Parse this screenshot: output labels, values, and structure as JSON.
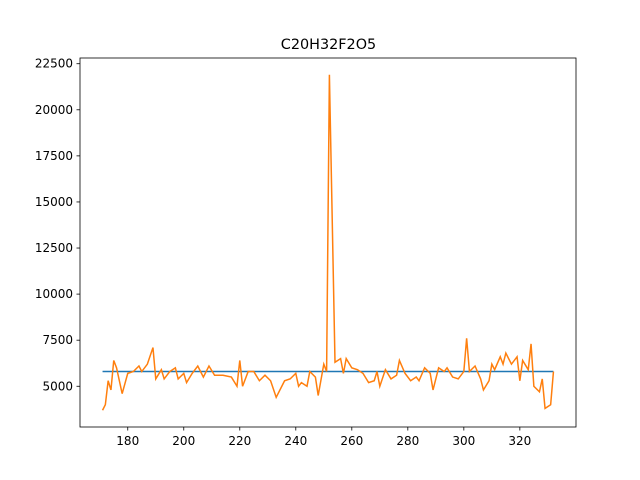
{
  "chart_data": {
    "type": "line",
    "title": "C20H32F2O5",
    "series": [
      {
        "color": "#1f77b4",
        "x": [
          171,
          332
        ],
        "values": [
          5800,
          5800
        ]
      },
      {
        "color": "#ff7f0e",
        "x": [
          171,
          172,
          173,
          174,
          175,
          176,
          178,
          180,
          182,
          184,
          185,
          187,
          189,
          190,
          192,
          193,
          195,
          197,
          198,
          200,
          201,
          203,
          205,
          207,
          209,
          211,
          214,
          217,
          219,
          220,
          221,
          223,
          225,
          227,
          229,
          231,
          233,
          236,
          238,
          240,
          241,
          242,
          244,
          245,
          247,
          248,
          250,
          251,
          252,
          254,
          256,
          257,
          258,
          260,
          262,
          264,
          266,
          268,
          269,
          270,
          272,
          274,
          276,
          277,
          279,
          281,
          283,
          284,
          286,
          288,
          289,
          291,
          293,
          294,
          296,
          298,
          300,
          301,
          302,
          304,
          306,
          307,
          309,
          310,
          311,
          313,
          314,
          315,
          317,
          319,
          320,
          321,
          323,
          324,
          325,
          327,
          328,
          329,
          331,
          332
        ],
        "values": [
          3700,
          4000,
          5300,
          4800,
          6400,
          6000,
          4600,
          5700,
          5800,
          6100,
          5800,
          6200,
          7100,
          5400,
          5900,
          5400,
          5800,
          6000,
          5400,
          5700,
          5200,
          5700,
          6100,
          5500,
          6100,
          5600,
          5600,
          5500,
          5000,
          6400,
          5000,
          5800,
          5800,
          5300,
          5600,
          5300,
          4400,
          5300,
          5400,
          5700,
          5000,
          5200,
          5000,
          5800,
          5500,
          4500,
          6200,
          5800,
          21900,
          6300,
          6500,
          5700,
          6500,
          6000,
          5900,
          5700,
          5200,
          5300,
          5800,
          5000,
          5900,
          5400,
          5600,
          6400,
          5700,
          5300,
          5500,
          5300,
          6000,
          5700,
          4800,
          6000,
          5800,
          6000,
          5500,
          5400,
          5800,
          7600,
          5800,
          6100,
          5400,
          4800,
          5300,
          6200,
          5900,
          6600,
          6200,
          6800,
          6200,
          6600,
          5300,
          6400,
          5900,
          7300,
          5000,
          4700,
          5400,
          3800,
          4000,
          5800
        ]
      }
    ],
    "xlim": [
      162.95,
      340.05
    ],
    "xticks": [
      180,
      200,
      220,
      240,
      260,
      280,
      300,
      320
    ],
    "ylim": [
      2790,
      22810
    ],
    "yticks": [
      5000,
      7500,
      10000,
      12500,
      15000,
      17500,
      20000,
      22500
    ]
  }
}
